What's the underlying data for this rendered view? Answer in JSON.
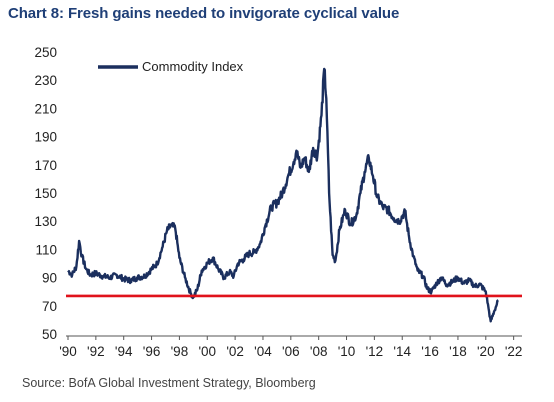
{
  "title": "Chart 8: Fresh gains needed to invigorate cyclical value",
  "source": "Source: BofA Global Investment Strategy, Bloomberg",
  "colors": {
    "series": "#1b2f5e",
    "reference_line": "#e0121b",
    "title": "#1f3f77"
  },
  "chart_data": {
    "type": "line",
    "title": "Chart 8: Fresh gains needed to invigorate cyclical value",
    "xlabel": "",
    "ylabel": "",
    "xlim": [
      1990,
      2022.6
    ],
    "ylim": [
      50,
      250
    ],
    "grid": false,
    "legend_position": "top-left",
    "x_tick_labels": [
      "'90",
      "'92",
      "'94",
      "'96",
      "'98",
      "'00",
      "'02",
      "'04",
      "'06",
      "'08",
      "'10",
      "'12",
      "'14",
      "'16",
      "'18",
      "'20",
      "'22"
    ],
    "y_ticks": [
      50,
      70,
      90,
      110,
      130,
      150,
      170,
      190,
      210,
      230,
      250
    ],
    "reference_line": {
      "y": 77,
      "color": "#e0121b"
    },
    "series": [
      {
        "name": "Commodity Index",
        "color": "#1b2f5e",
        "x": [
          1990.0,
          1990.3,
          1990.6,
          1990.8,
          1991.0,
          1991.3,
          1991.6,
          1992.0,
          1992.5,
          1993.0,
          1993.5,
          1994.0,
          1994.5,
          1995.0,
          1995.5,
          1996.0,
          1996.4,
          1996.8,
          1997.1,
          1997.4,
          1997.7,
          1998.0,
          1998.4,
          1998.8,
          1999.0,
          1999.3,
          1999.6,
          2000.0,
          2000.4,
          2000.8,
          2001.2,
          2001.6,
          2001.9,
          2002.2,
          2002.6,
          2003.0,
          2003.4,
          2003.8,
          2004.2,
          2004.6,
          2005.0,
          2005.4,
          2005.8,
          2006.2,
          2006.4,
          2006.7,
          2007.0,
          2007.3,
          2007.6,
          2007.9,
          2008.2,
          2008.4,
          2008.55,
          2008.75,
          2009.0,
          2009.2,
          2009.5,
          2009.9,
          2010.3,
          2010.7,
          2011.0,
          2011.3,
          2011.6,
          2011.9,
          2012.2,
          2012.6,
          2013.0,
          2013.4,
          2013.8,
          2014.2,
          2014.5,
          2014.8,
          2015.1,
          2015.5,
          2015.8,
          2016.1,
          2016.4,
          2016.8,
          2017.2,
          2017.6,
          2018.0,
          2018.4,
          2018.8,
          2019.2,
          2019.6,
          2020.0,
          2020.2,
          2020.35,
          2020.6,
          2020.9
        ],
        "values": [
          95,
          92,
          98,
          116,
          105,
          96,
          92,
          93,
          91,
          90,
          92,
          89,
          88,
          90,
          91,
          96,
          100,
          112,
          123,
          127,
          125,
          104,
          90,
          79,
          76,
          82,
          95,
          100,
          104,
          96,
          90,
          94,
          91,
          100,
          103,
          107,
          108,
          114,
          128,
          140,
          143,
          150,
          162,
          172,
          180,
          168,
          175,
          165,
          182,
          176,
          205,
          238,
          217,
          150,
          106,
          102,
          124,
          138,
          128,
          134,
          150,
          165,
          175,
          162,
          147,
          140,
          138,
          132,
          130,
          137,
          118,
          105,
          95,
          91,
          82,
          80,
          85,
          90,
          85,
          87,
          90,
          86,
          88,
          84,
          85,
          80,
          68,
          59,
          66,
          74
        ]
      }
    ]
  }
}
